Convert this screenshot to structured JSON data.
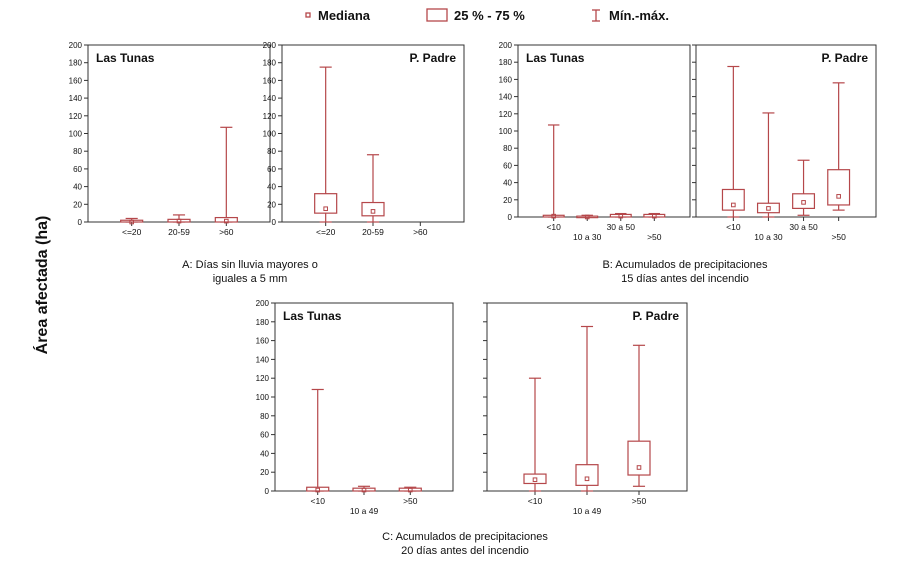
{
  "figure": {
    "ylabel": "Área afectada (ha)",
    "legend": {
      "median": "Mediana",
      "iqr": "25 % - 75 %",
      "range": "Mín.-máx."
    },
    "captions": {
      "A": [
        "A: Días sin lluvia mayores o",
        "iguales a 5 mm"
      ],
      "B": [
        "B: Acumulados de precipitaciones",
        "15 días antes del incendio"
      ],
      "C": [
        "C: Acumulados de precipitaciones",
        "20 días antes del incendio"
      ]
    },
    "colors": {
      "box": "#b5474a",
      "axis": "#333333",
      "text": "#111111"
    }
  },
  "chart_data": [
    {
      "id": "A-las-tunas",
      "type": "box",
      "title": "Las Tunas",
      "ylim": [
        0,
        200
      ],
      "yticks": [
        0,
        20,
        40,
        60,
        80,
        100,
        120,
        140,
        160,
        180,
        200
      ],
      "categories": [
        "<=20",
        "20-59",
        ">60"
      ],
      "boxes": [
        {
          "min": 0,
          "q1": 0,
          "median": 0,
          "q3": 2,
          "max": 4
        },
        {
          "min": 0,
          "q1": 0,
          "median": 1,
          "q3": 3,
          "max": 8
        },
        {
          "min": 0,
          "q1": 0,
          "median": 1,
          "q3": 5,
          "max": 107
        }
      ]
    },
    {
      "id": "A-p-padre",
      "type": "box",
      "title": "P. Padre",
      "ylim": [
        0,
        200
      ],
      "yticks": [
        0,
        20,
        40,
        60,
        80,
        100,
        120,
        140,
        160,
        180,
        200
      ],
      "categories": [
        "<=20",
        "20-59",
        ">60"
      ],
      "boxes": [
        {
          "min": 0,
          "q1": 10,
          "median": 15,
          "q3": 32,
          "max": 175
        },
        {
          "min": 0,
          "q1": 7,
          "median": 12,
          "q3": 22,
          "max": 76
        },
        null
      ]
    },
    {
      "id": "B-las-tunas",
      "type": "box",
      "title": "Las Tunas",
      "ylim": [
        0,
        200
      ],
      "yticks": [
        0,
        20,
        40,
        60,
        80,
        100,
        120,
        140,
        160,
        180,
        200
      ],
      "categories": [
        "<10",
        "10 a 30",
        "30 a 50",
        ">50"
      ],
      "boxes": [
        {
          "min": 0,
          "q1": 0,
          "median": 1,
          "q3": 2,
          "max": 107
        },
        {
          "min": 0,
          "q1": 0,
          "median": 0,
          "q3": 1,
          "max": 2
        },
        {
          "min": 0,
          "q1": 0,
          "median": 1,
          "q3": 3,
          "max": 4
        },
        {
          "min": 0,
          "q1": 0,
          "median": 1,
          "q3": 3,
          "max": 4
        }
      ]
    },
    {
      "id": "B-p-padre",
      "type": "box",
      "title": "P. Padre",
      "ylim": [
        0,
        200
      ],
      "yticks": [
        0,
        20,
        40,
        60,
        80,
        100,
        120,
        140,
        160,
        180,
        200
      ],
      "categories": [
        "<10",
        "10 a 30",
        "30 a 50",
        ">50"
      ],
      "boxes": [
        {
          "min": 0,
          "q1": 8,
          "median": 14,
          "q3": 32,
          "max": 175
        },
        {
          "min": 0,
          "q1": 5,
          "median": 10,
          "q3": 16,
          "max": 121
        },
        {
          "min": 2,
          "q1": 10,
          "median": 17,
          "q3": 27,
          "max": 66
        },
        {
          "min": 8,
          "q1": 14,
          "median": 24,
          "q3": 55,
          "max": 156
        }
      ]
    },
    {
      "id": "C-las-tunas",
      "type": "box",
      "title": "Las Tunas",
      "ylim": [
        0,
        200
      ],
      "yticks": [
        0,
        20,
        40,
        60,
        80,
        100,
        120,
        140,
        160,
        180,
        200
      ],
      "categories": [
        "<10",
        "10 a 49",
        ">50"
      ],
      "boxes": [
        {
          "min": 0,
          "q1": 0,
          "median": 1,
          "q3": 4,
          "max": 108
        },
        {
          "min": 0,
          "q1": 0,
          "median": 1,
          "q3": 3,
          "max": 5
        },
        {
          "min": 0,
          "q1": 0,
          "median": 1,
          "q3": 3,
          "max": 4
        }
      ]
    },
    {
      "id": "C-p-padre",
      "type": "box",
      "title": "P. Padre",
      "ylim": [
        0,
        200
      ],
      "yticks": [
        0,
        20,
        40,
        60,
        80,
        100,
        120,
        140,
        160,
        180,
        200
      ],
      "categories": [
        "<10",
        "10 a 49",
        ">50"
      ],
      "boxes": [
        {
          "min": 0,
          "q1": 8,
          "median": 12,
          "q3": 18,
          "max": 120
        },
        {
          "min": 0,
          "q1": 6,
          "median": 13,
          "q3": 28,
          "max": 175
        },
        {
          "min": 5,
          "q1": 17,
          "median": 25,
          "q3": 53,
          "max": 155
        }
      ]
    }
  ]
}
